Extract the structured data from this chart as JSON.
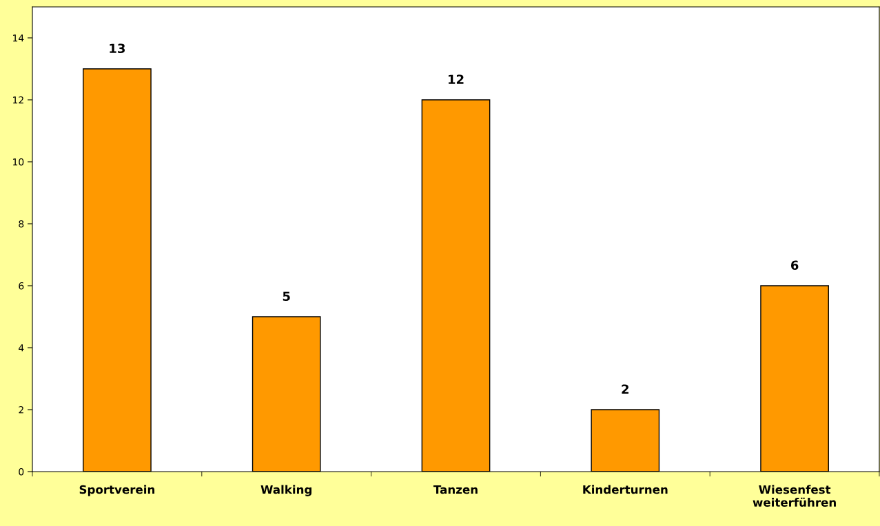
{
  "chart_data": {
    "type": "bar",
    "categories": [
      "Sportverein",
      "Walking",
      "Tanzen",
      "Kinderturnen",
      "Wiesenfest\nweiterführen"
    ],
    "values": [
      13,
      5,
      12,
      2,
      6
    ],
    "color": "#ff9900",
    "ylim": [
      0,
      15
    ],
    "yticks": [
      0,
      2,
      4,
      6,
      8,
      10,
      12,
      14
    ],
    "data_labels": true,
    "grid": false,
    "legend": false
  }
}
